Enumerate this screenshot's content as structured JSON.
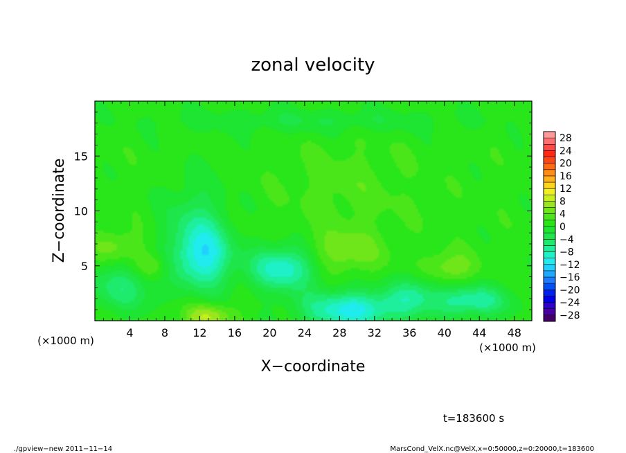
{
  "chart_data": {
    "type": "heatmap",
    "title": "zonal velocity",
    "xlabel": "X−coordinate",
    "ylabel": "Z−coordinate",
    "x_unit_left": "(×1000 m)",
    "x_unit_right": "(×1000 m)",
    "xlim": [
      0,
      50
    ],
    "ylim": [
      0,
      20
    ],
    "x_ticks": [
      4,
      8,
      12,
      16,
      20,
      24,
      28,
      32,
      36,
      40,
      44,
      48
    ],
    "y_ticks": [
      5,
      10,
      15
    ],
    "grid": false,
    "colorbar": {
      "placement": "right",
      "levels": [
        -30,
        -28,
        -26,
        -24,
        -22,
        -20,
        -18,
        -16,
        -14,
        -12,
        -10,
        -8,
        -6,
        -4,
        -2,
        0,
        2,
        4,
        6,
        8,
        10,
        12,
        14,
        16,
        18,
        20,
        22,
        24,
        26,
        28,
        30
      ],
      "tick_labels": [
        "28",
        "24",
        "20",
        "16",
        "12",
        "8",
        "4",
        "0",
        "−4",
        "−8",
        "−12",
        "−16",
        "−20",
        "−24",
        "−28"
      ],
      "colors": [
        "#440066",
        "#4a00a0",
        "#2f00c8",
        "#0000e6",
        "#0020f0",
        "#0050f5",
        "#1e7aff",
        "#23a8ff",
        "#21d0ff",
        "#20ecf0",
        "#1ef0c8",
        "#1eef9c",
        "#1eea6e",
        "#1ee64a",
        "#1ee432",
        "#28e61a",
        "#4ae61a",
        "#6ee61a",
        "#9ae61e",
        "#c8ee1e",
        "#f0f01e",
        "#ffd41e",
        "#ffb01e",
        "#ff8c14",
        "#ff6a14",
        "#ff4614",
        "#ff2a14",
        "#ff4a4a",
        "#ff7070",
        "#ff9a9a"
      ]
    },
    "field_summary": {
      "background_value": 1,
      "features": [
        {
          "x": 12.5,
          "z": 5.8,
          "value": -9,
          "sx": 2.2,
          "sz": 2.0
        },
        {
          "x": 11.5,
          "z": 8.5,
          "value": -4,
          "sx": 2.5,
          "sz": 3.0
        },
        {
          "x": 21.5,
          "z": 4.8,
          "value": -10,
          "sx": 2.6,
          "sz": 1.4
        },
        {
          "x": 29.5,
          "z": 1.0,
          "value": -11,
          "sx": 4.0,
          "sz": 1.2
        },
        {
          "x": 28.5,
          "z": 6.3,
          "value": 6,
          "sx": 2.8,
          "sz": 1.3
        },
        {
          "x": 40.5,
          "z": 4.8,
          "value": 6,
          "sx": 2.0,
          "sz": 1.0
        },
        {
          "x": 13.0,
          "z": 0.4,
          "value": 8,
          "sx": 2.0,
          "sz": 0.8
        },
        {
          "x": 2.5,
          "z": 6.8,
          "value": 5,
          "sx": 2.0,
          "sz": 1.0
        },
        {
          "x": 6.5,
          "z": 5.0,
          "value": 5,
          "sx": 1.4,
          "sz": 0.8
        },
        {
          "x": 43.0,
          "z": 1.8,
          "value": -8,
          "sx": 3.0,
          "sz": 1.0
        },
        {
          "x": 3.0,
          "z": 3.0,
          "value": -5,
          "sx": 2.8,
          "sz": 1.5
        },
        {
          "x": 29.0,
          "z": 12.0,
          "value": 3,
          "sx": 5.0,
          "sz": 3.0
        },
        {
          "x": 25.0,
          "z": 18.2,
          "value": -2,
          "sx": 12.0,
          "sz": 0.8
        },
        {
          "x": 36.5,
          "z": 2.5,
          "value": -5,
          "sx": 2.0,
          "sz": 1.2
        }
      ]
    },
    "time_label": "t=183600 s"
  },
  "footer": {
    "left": "./gpview−new   2011−11−14",
    "right": "MarsCond_VelX.nc@VelX,x=0:50000,z=0:20000,t=183600"
  }
}
